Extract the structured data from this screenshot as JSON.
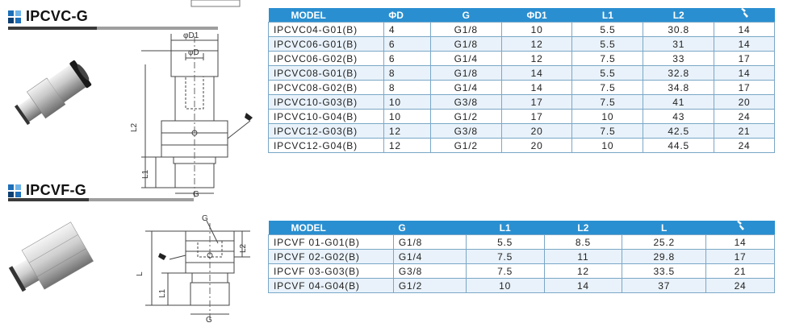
{
  "section1": {
    "title": "IPCVC-G",
    "drawing_labels": {
      "d1": "φD1",
      "d": "φD",
      "l2": "L2",
      "l1": "L1",
      "g": "G",
      "top_note": "φP"
    },
    "table": {
      "headers": [
        "MODEL",
        "ΦD",
        "G",
        "ΦD1",
        "L1",
        "L2",
        "wrench-icon"
      ],
      "rows": [
        [
          "IPCVC04-G01(B)",
          "4",
          "G1/8",
          "10",
          "5.5",
          "30.8",
          "14"
        ],
        [
          "IPCVC06-G01(B)",
          "6",
          "G1/8",
          "12",
          "5.5",
          "31",
          "14"
        ],
        [
          "IPCVC06-G02(B)",
          "6",
          "G1/4",
          "12",
          "7.5",
          "33",
          "17"
        ],
        [
          "IPCVC08-G01(B)",
          "8",
          "G1/8",
          "14",
          "5.5",
          "32.8",
          "14"
        ],
        [
          "IPCVC08-G02(B)",
          "8",
          "G1/4",
          "14",
          "7.5",
          "34.8",
          "17"
        ],
        [
          "IPCVC10-G03(B)",
          "10",
          "G3/8",
          "17",
          "7.5",
          "41",
          "20"
        ],
        [
          "IPCVC10-G04(B)",
          "10",
          "G1/2",
          "17",
          "10",
          "43",
          "24"
        ],
        [
          "IPCVC12-G03(B)",
          "12",
          "G3/8",
          "20",
          "7.5",
          "42.5",
          "21"
        ],
        [
          "IPCVC12-G04(B)",
          "12",
          "G1/2",
          "20",
          "10",
          "44.5",
          "24"
        ]
      ]
    }
  },
  "section2": {
    "title": "IPCVF-G",
    "drawing_labels": {
      "g_top": "G",
      "l2": "L2",
      "l": "L",
      "l1": "L1",
      "g": "G"
    },
    "table": {
      "headers": [
        "MODEL",
        "G",
        "L1",
        "L2",
        "L",
        "wrench-icon"
      ],
      "rows": [
        [
          "IPCVF 01-G01(B)",
          "G1/8",
          "5.5",
          "8.5",
          "25.2",
          "14"
        ],
        [
          "IPCVF 02-G02(B)",
          "G1/4",
          "7.5",
          "11",
          "29.8",
          "17"
        ],
        [
          "IPCVF 03-G03(B)",
          "G3/8",
          "7.5",
          "12",
          "33.5",
          "21"
        ],
        [
          "IPCVF 04-G04(B)",
          "G1/2",
          "10",
          "14",
          "37",
          "24"
        ]
      ]
    }
  },
  "colors": {
    "header_blue": "#2a8fd0",
    "row_alt": "#e9f2fa",
    "border": "#7aa7c7",
    "logo_blue": "#1d6fb8"
  }
}
